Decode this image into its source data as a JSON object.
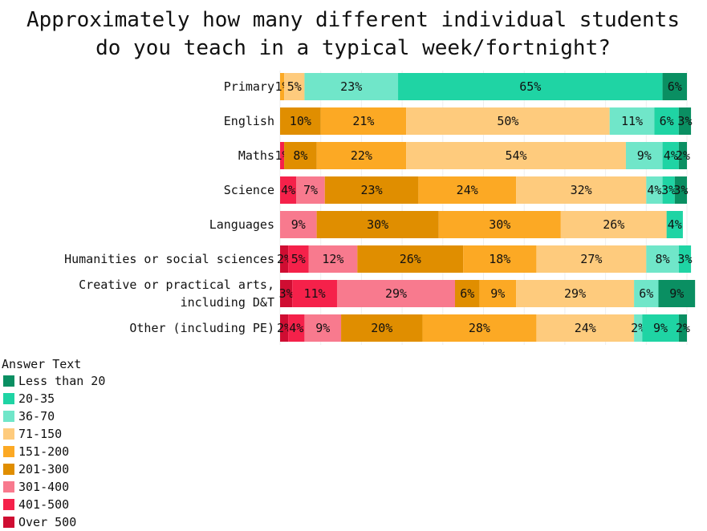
{
  "chart_data": {
    "type": "bar",
    "orientation": "horizontal",
    "stacked": true,
    "title": "Approximately how many different individual students\ndo you teach in a typical week/fortnight?",
    "xlabel": "",
    "ylabel": "",
    "xlim": [
      0,
      100
    ],
    "grid": true,
    "legend_title": "Answer Text",
    "legend_position": "bottom-left",
    "categories": [
      "Primary",
      "English",
      "Maths",
      "Science",
      "Languages",
      "Humanities or social sciences",
      "Creative or practical arts,\nincluding D&T",
      "Other (including PE)"
    ],
    "series": [
      {
        "name": "Over 500",
        "color": "#cf0d32",
        "values": [
          0,
          0,
          0,
          0,
          0,
          2,
          3,
          2
        ]
      },
      {
        "name": "401-500",
        "color": "#f5214a",
        "values": [
          0,
          0,
          1,
          4,
          0,
          5,
          11,
          4
        ]
      },
      {
        "name": "301-400",
        "color": "#f87a8e",
        "values": [
          0,
          0,
          0,
          7,
          9,
          12,
          29,
          9
        ]
      },
      {
        "name": "201-300",
        "color": "#e08e00",
        "values": [
          0,
          10,
          8,
          23,
          30,
          26,
          6,
          20
        ]
      },
      {
        "name": "151-200",
        "color": "#fca924",
        "values": [
          1,
          21,
          22,
          24,
          30,
          18,
          9,
          28
        ]
      },
      {
        "name": "71-150",
        "color": "#fecb7d",
        "values": [
          5,
          50,
          54,
          32,
          26,
          27,
          29,
          24
        ]
      },
      {
        "name": "36-70",
        "color": "#70e6c9",
        "values": [
          23,
          11,
          9,
          4,
          0,
          8,
          6,
          2
        ]
      },
      {
        "name": "20-35",
        "color": "#1fd4a4",
        "values": [
          65,
          6,
          4,
          3,
          4,
          3,
          0,
          9
        ]
      },
      {
        "name": "Less than 20",
        "color": "#0a8f62",
        "values": [
          6,
          3,
          2,
          3,
          0,
          0,
          9,
          2
        ]
      }
    ],
    "legend_order": [
      "Less than 20",
      "20-35",
      "36-70",
      "71-150",
      "151-200",
      "201-300",
      "301-400",
      "401-500",
      "Over 500"
    ]
  }
}
